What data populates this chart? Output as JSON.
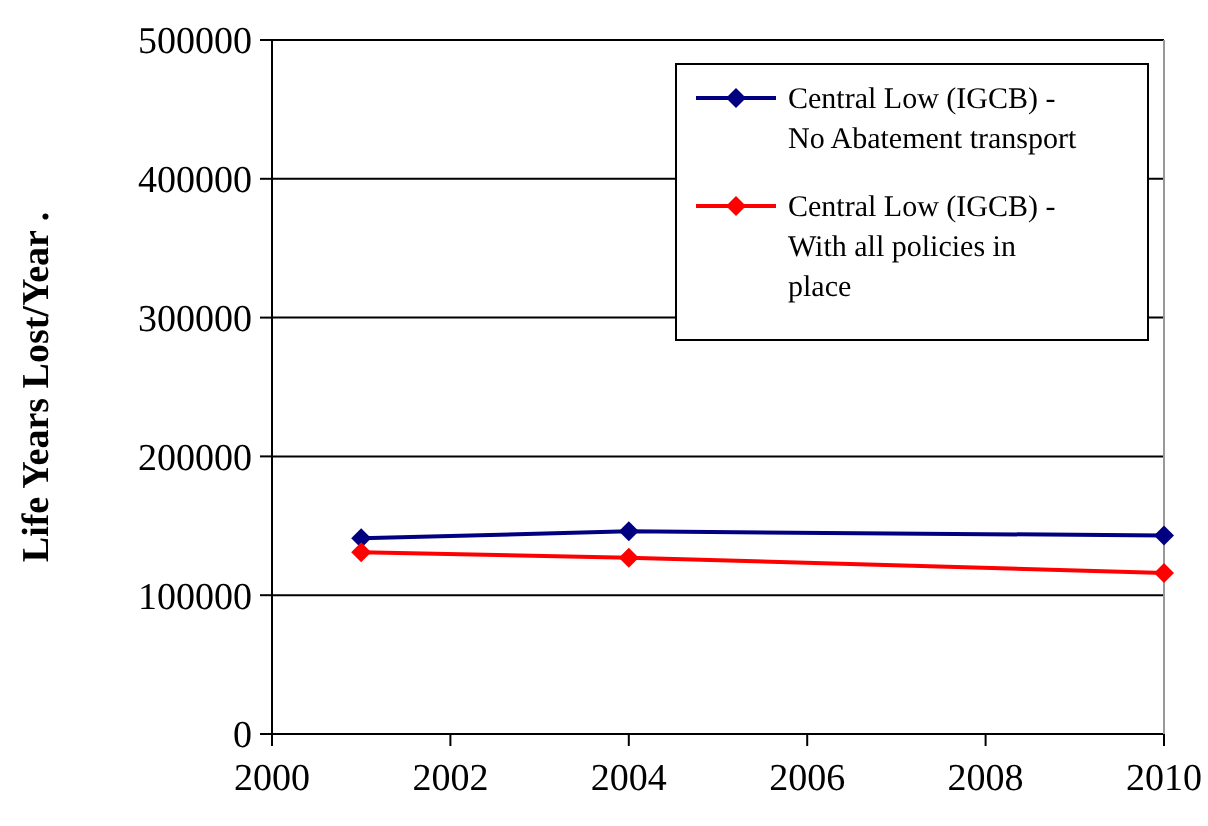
{
  "chart_data": {
    "type": "line",
    "ylabel": "Life Years Lost/Year   .",
    "x": [
      2001,
      2004,
      2010
    ],
    "series": [
      {
        "name": "Central Low (IGCB) - No Abatement transport",
        "color": "#000080",
        "values": [
          141000,
          146000,
          143000
        ]
      },
      {
        "name": "Central Low (IGCB) - With all policies in place",
        "color": "#ff0000",
        "values": [
          131000,
          127000,
          116000
        ]
      }
    ],
    "xlim": [
      2000,
      2010
    ],
    "xticks": [
      2000,
      2002,
      2004,
      2006,
      2008,
      2010
    ],
    "ylim": [
      0,
      500000
    ],
    "yticks": [
      0,
      100000,
      200000,
      300000,
      400000,
      500000
    ],
    "grid": "y",
    "legend": "top right",
    "marker": "diamond",
    "line_style": "solid"
  }
}
